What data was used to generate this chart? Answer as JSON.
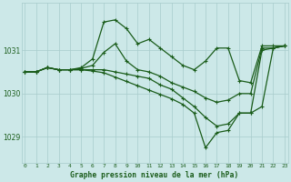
{
  "background_color": "#cce8e8",
  "plot_bg_color": "#cce8e8",
  "line_color": "#1a5c1a",
  "marker": "+",
  "markersize": 3.5,
  "linewidth": 0.9,
  "title": "Graphe pression niveau de la mer (hPa)",
  "xlabel_ticks": [
    "0",
    "1",
    "2",
    "3",
    "4",
    "5",
    "6",
    "7",
    "8",
    "9",
    "10",
    "11",
    "12",
    "13",
    "14",
    "15",
    "16",
    "17",
    "18",
    "19",
    "20",
    "21",
    "22",
    "23"
  ],
  "yticks": [
    1029,
    1030,
    1031
  ],
  "ylim": [
    1028.4,
    1032.1
  ],
  "xlim": [
    -0.3,
    23.3
  ],
  "grid_color": "#a8cccc",
  "series": [
    [
      1030.5,
      1030.5,
      1030.6,
      1030.55,
      1030.55,
      1030.6,
      1030.8,
      1031.65,
      1031.7,
      1031.5,
      1031.15,
      1031.25,
      1031.05,
      1030.85,
      1030.65,
      1030.55,
      1030.75,
      1031.05,
      1031.05,
      1030.3,
      1030.25,
      1031.1,
      1031.1,
      1031.1
    ],
    [
      1030.5,
      1030.5,
      1030.6,
      1030.55,
      1030.55,
      1030.58,
      1030.65,
      1030.95,
      1031.15,
      1030.75,
      1030.55,
      1030.5,
      1030.4,
      1030.25,
      1030.15,
      1030.05,
      1029.9,
      1029.8,
      1029.85,
      1030.0,
      1030.0,
      1031.05,
      1031.05,
      1031.1
    ],
    [
      1030.5,
      1030.5,
      1030.6,
      1030.55,
      1030.55,
      1030.55,
      1030.55,
      1030.55,
      1030.5,
      1030.45,
      1030.4,
      1030.35,
      1030.2,
      1030.1,
      1029.9,
      1029.7,
      1029.45,
      1029.25,
      1029.3,
      1029.55,
      1029.55,
      1029.7,
      1031.05,
      1031.1
    ],
    [
      1030.5,
      1030.5,
      1030.6,
      1030.55,
      1030.55,
      1030.55,
      1030.52,
      1030.48,
      1030.38,
      1030.28,
      1030.18,
      1030.08,
      1029.98,
      1029.88,
      1029.75,
      1029.55,
      1028.75,
      1029.1,
      1029.15,
      1029.55,
      1029.55,
      1031.0,
      1031.05,
      1031.1
    ]
  ]
}
